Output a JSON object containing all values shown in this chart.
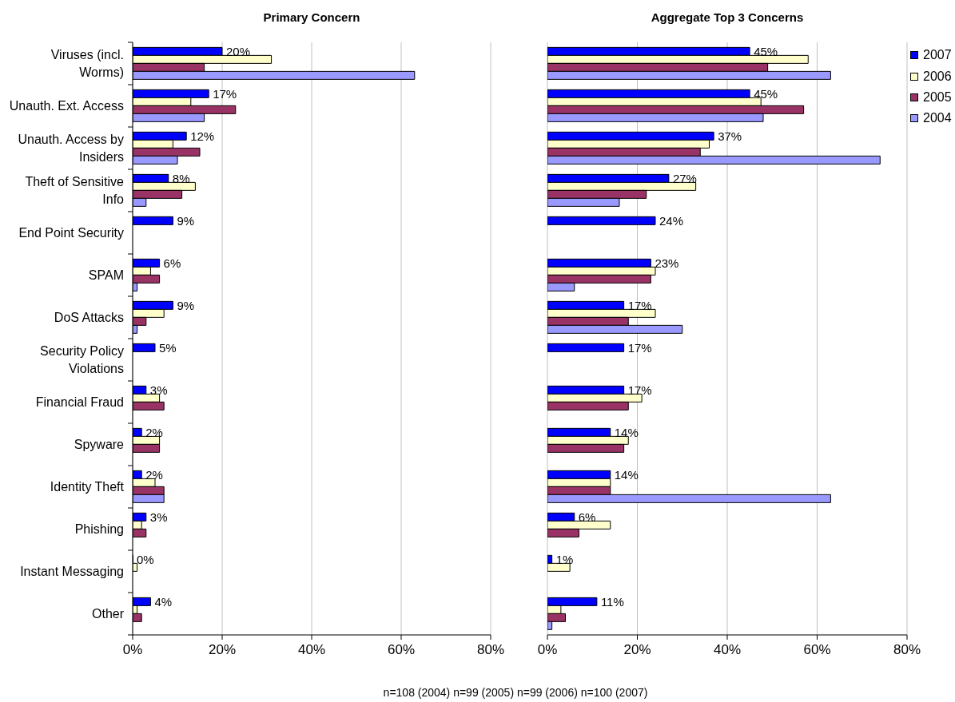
{
  "chart_data": [
    {
      "type": "bar",
      "orientation": "horizontal",
      "title": "Primary Concern",
      "categories": [
        "Viruses (incl. Worms)",
        "Unauth. Ext. Access",
        "Unauth. Access by Insiders",
        "Theft of Sensitive Info",
        "End Point Security",
        "SPAM",
        "DoS Attacks",
        "Security Policy Violations",
        "Financial Fraud",
        "Spyware",
        "Identity Theft",
        "Phishing",
        "Instant Messaging",
        "Other"
      ],
      "series": [
        {
          "color": "#0000ff",
          "values": [
            20,
            17,
            12,
            8,
            9,
            6,
            9,
            5,
            3,
            2,
            2,
            3,
            0,
            4
          ],
          "value_labels": [
            "20%",
            "17%",
            "12%",
            "8%",
            "9%",
            "6%",
            "9%",
            "5%",
            "3%",
            "2%",
            "2%",
            "3%",
            "0%",
            "4%"
          ]
        },
        {
          "color": "#ffffcc",
          "values": [
            31,
            13,
            9,
            14,
            null,
            4,
            7,
            null,
            6,
            6,
            5,
            2,
            1,
            1
          ]
        },
        {
          "color": "#993366",
          "values": [
            16,
            23,
            15,
            11,
            null,
            6,
            3,
            null,
            7,
            6,
            7,
            3,
            null,
            2
          ]
        },
        {
          "color": "#9999ff",
          "values": [
            63,
            16,
            10,
            3,
            null,
            1,
            1,
            null,
            null,
            null,
            7,
            null,
            null,
            null
          ]
        }
      ],
      "xlim": [
        0,
        80
      ],
      "xticks": [
        {
          "value": 0,
          "label": "0%"
        },
        {
          "value": 20,
          "label": "20%"
        },
        {
          "value": 40,
          "label": "40%"
        },
        {
          "value": 60,
          "label": "60%"
        },
        {
          "value": 80,
          "label": "80%"
        }
      ],
      "grid": "x"
    },
    {
      "type": "bar",
      "orientation": "horizontal",
      "title": "Aggregate Top 3 Concerns",
      "categories": [
        null,
        null,
        null,
        null,
        null,
        null,
        null,
        null,
        null,
        null,
        null,
        null,
        null,
        null
      ],
      "series": [
        {
          "name": "2007",
          "color": "#0000ff",
          "values": [
            45,
            45,
            37,
            27,
            24,
            23,
            17,
            17,
            17,
            14,
            14,
            6,
            1,
            11
          ],
          "value_labels": [
            "45%",
            "45%",
            "37%",
            "27%",
            "24%",
            "23%",
            "17%",
            "17%",
            "17%",
            "14%",
            "14%",
            "6%",
            "1%",
            "11%"
          ]
        },
        {
          "name": "2006",
          "color": "#ffffcc",
          "values": [
            58,
            47.5,
            36,
            33,
            null,
            24,
            24,
            null,
            21,
            18,
            14,
            14,
            5,
            3
          ]
        },
        {
          "name": "2005",
          "color": "#993366",
          "values": [
            49,
            57,
            34,
            22,
            null,
            23,
            18,
            null,
            18,
            17,
            14,
            7,
            null,
            4
          ]
        },
        {
          "name": "2004",
          "color": "#9999ff",
          "values": [
            63,
            48,
            74,
            16,
            null,
            6,
            30,
            null,
            null,
            null,
            63,
            null,
            null,
            1
          ]
        }
      ],
      "xlim": [
        0,
        80
      ],
      "xticks": [
        {
          "value": 0,
          "label": "0%"
        },
        {
          "value": 20,
          "label": "20%"
        },
        {
          "value": 40,
          "label": "40%"
        },
        {
          "value": 60,
          "label": "60%"
        },
        {
          "value": 80,
          "label": "80%"
        }
      ],
      "grid": "x",
      "legend": "top right",
      "tick_labels": "x",
      "annotations": [
        "n=108 (2004) n=99 (2005) n=99 (2006) n=100 (2007)"
      ]
    }
  ]
}
